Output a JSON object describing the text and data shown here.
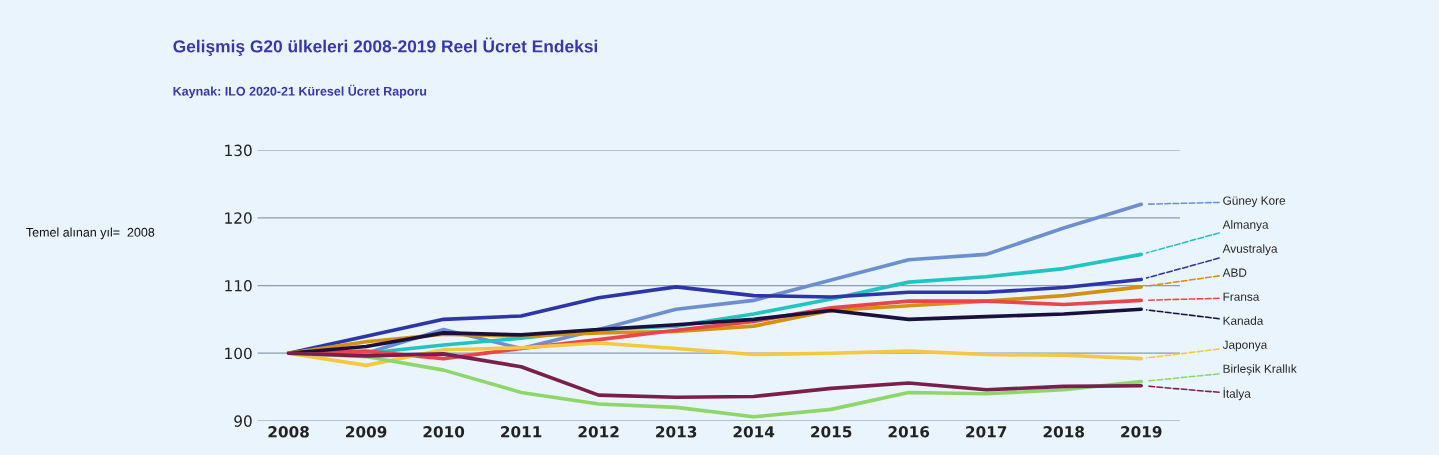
{
  "chart_data": {
    "type": "line",
    "title": "Gelişmiş G20 ülkeleri 2008-2019 Reel Ücret Endeksi",
    "subtitle": "Kaynak: ILO 2020-21 Küresel Ücret Raporu",
    "annotations": [
      "Temel alınan yıl=  2008"
    ],
    "x": [
      2008,
      2009,
      2010,
      2011,
      2012,
      2013,
      2014,
      2015,
      2016,
      2017,
      2018,
      2019
    ],
    "xlim": [
      2007.6,
      2019.5
    ],
    "xticks": [
      2008,
      2009,
      2010,
      2011,
      2012,
      2013,
      2014,
      2015,
      2016,
      2017,
      2018,
      2019
    ],
    "ylim": [
      90,
      130
    ],
    "yticks": [
      90,
      100,
      110,
      120,
      130
    ],
    "grid": "y",
    "legend": false,
    "line_style": "solid",
    "series": [
      {
        "name": "Güney Kore",
        "color": "#6e8fcf",
        "values": [
          100,
          100,
          103.5,
          100.7,
          103.5,
          106.5,
          107.8,
          110.8,
          113.8,
          114.6,
          118.5,
          122
        ]
      },
      {
        "name": "Almanya",
        "color": "#22c4c0",
        "values": [
          100,
          100,
          101.2,
          102.2,
          103.5,
          104,
          105.8,
          108,
          110.5,
          111.3,
          112.5,
          114.6
        ]
      },
      {
        "name": "Avustralya",
        "color": "#2e35a6",
        "values": [
          100,
          102.5,
          105,
          105.5,
          108.2,
          109.8,
          108.5,
          108.3,
          109,
          109,
          109.7,
          110.9
        ]
      },
      {
        "name": "ABD",
        "color": "#d4900f",
        "values": [
          100,
          101.7,
          102.8,
          102.5,
          103,
          103.2,
          104,
          106.3,
          107,
          107.7,
          108.5,
          109.8
        ]
      },
      {
        "name": "Fransa",
        "color": "#e8464b",
        "values": [
          100,
          100.3,
          99.2,
          100.7,
          102,
          103.4,
          104.7,
          106.7,
          107.7,
          107.7,
          107.2,
          107.8
        ]
      },
      {
        "name": "Kanada",
        "color": "#1a1040",
        "values": [
          100,
          101,
          103,
          102.7,
          103.5,
          104.2,
          105,
          106.3,
          105,
          105.4,
          105.8,
          106.5
        ]
      },
      {
        "name": "Japonya",
        "color": "#f5c842",
        "values": [
          100,
          98.2,
          100.5,
          100.8,
          101.5,
          100.7,
          99.8,
          100,
          100.3,
          99.8,
          99.7,
          99.2
        ]
      },
      {
        "name": "Birleşik Krallık",
        "color": "#8ed66a",
        "values": [
          100,
          99.5,
          97.5,
          94.2,
          92.5,
          92,
          90.6,
          91.7,
          94.2,
          94,
          94.6,
          95.8
        ]
      },
      {
        "name": "İtalya",
        "color": "#7a1f4c",
        "values": [
          100,
          99.6,
          99.9,
          98,
          93.8,
          93.5,
          93.6,
          94.8,
          95.6,
          94.6,
          95.1,
          95.2
        ]
      }
    ]
  }
}
